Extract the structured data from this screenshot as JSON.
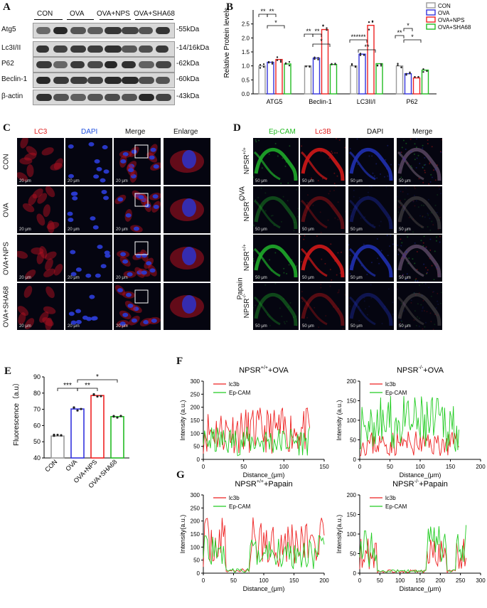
{
  "panels": {
    "A": "A",
    "B": "B",
    "C": "C",
    "D": "D",
    "E": "E",
    "F": "F",
    "G": "G"
  },
  "panelA": {
    "groups": [
      "CON",
      "OVA",
      "OVA+NPS",
      "OVA+SHA68"
    ],
    "rows": [
      {
        "label": "Atg5",
        "kda": "-55kDa"
      },
      {
        "label": "Lc3I/II",
        "kda": "-14/16kDa"
      },
      {
        "label": "P62",
        "kda": "-62kDa"
      },
      {
        "label": "Beclin-1",
        "kda": "-60kDa"
      },
      {
        "label": "β-actin",
        "kda": "-43kDa"
      }
    ]
  },
  "panelC": {
    "columns": [
      "LC3",
      "DAPI",
      "Merge",
      "Enlarge"
    ],
    "rows": [
      "CON",
      "OVA",
      "OVA+NPS",
      "OVA+SHA68"
    ],
    "scale": "20 μm"
  },
  "panelD": {
    "columns": [
      "Ep-CAM",
      "Lc3B",
      "DAPI",
      "Merge"
    ],
    "groups": [
      "OVA",
      "Papain"
    ],
    "genotype_wt": "NPSR",
    "genotype_wt_sup": "+/+",
    "genotype_ko": "NPSR",
    "genotype_ko_sup": "-/-",
    "scale": "50 μm"
  },
  "colors": {
    "CON": "#9a9a9a",
    "OVA": "#3333dd",
    "OVA_NPS": "#ee2222",
    "OVA_SHA68": "#22bb22",
    "lc3b": "#ee2222",
    "epcam": "#22cc22"
  },
  "chart_data": [
    {
      "id": "B",
      "type": "bar",
      "ylabel": "Relative Protein levels",
      "ylim": [
        0,
        3.0
      ],
      "yticks": [
        "0.0",
        "0.5",
        "1.0",
        "1.5",
        "2.0",
        "2.5"
      ],
      "categories": [
        "ATG5",
        "Beclin-1",
        "LC3II/I",
        "P62"
      ],
      "series": [
        {
          "name": "CON",
          "values": [
            1.0,
            1.0,
            1.0,
            1.0
          ]
        },
        {
          "name": "OVA",
          "values": [
            1.13,
            1.28,
            1.42,
            0.72
          ]
        },
        {
          "name": "OVA+NPS",
          "values": [
            1.23,
            2.3,
            2.45,
            0.57
          ]
        },
        {
          "name": "OVA+SHA68",
          "values": [
            1.07,
            1.05,
            1.08,
            0.85
          ]
        }
      ],
      "significance": [
        "**",
        "**",
        "*",
        "**",
        "**",
        "*",
        "******",
        "**",
        "**",
        "*",
        "*"
      ],
      "legend": "top-right"
    },
    {
      "id": "E",
      "type": "bar",
      "ylabel": "Fluorescence（a.u）",
      "ylim": [
        40,
        90
      ],
      "yticks": [
        "40",
        "50",
        "60",
        "70",
        "80",
        "90"
      ],
      "categories": [
        "CON",
        "OVA",
        "OVA+NPS",
        "OVA+SHA68"
      ],
      "values": [
        53.5,
        70.2,
        78.5,
        65.5
      ],
      "significance": [
        "***",
        "**",
        "*"
      ]
    },
    {
      "id": "F1",
      "type": "line",
      "title": "NPSR",
      "title_sup": "+/+",
      "title_rest": "+OVA",
      "xlabel": "Distance_(μm)",
      "ylabel": "Intensity (a.u.)",
      "xlim": [
        0,
        150
      ],
      "ylim": [
        0,
        300
      ],
      "xticks": [
        "0",
        "50",
        "100",
        "150"
      ],
      "yticks": [
        "0",
        "50",
        "100",
        "150",
        "200",
        "250",
        "300"
      ],
      "series": [
        {
          "name": "lc3b"
        },
        {
          "name": "Ep-CAM"
        }
      ]
    },
    {
      "id": "F2",
      "type": "line",
      "title": "NPSR",
      "title_sup": "-/-",
      "title_rest": "+OVA",
      "xlabel": "Distance_(μm)",
      "ylabel": "Intensity (a.u.)",
      "xlim": [
        0,
        200
      ],
      "ylim": [
        0,
        200
      ],
      "xticks": [
        "0",
        "50",
        "100",
        "150",
        "200"
      ],
      "yticks": [
        "0",
        "50",
        "100",
        "150",
        "200"
      ],
      "series": [
        {
          "name": "lc3b"
        },
        {
          "name": "Ep-CAM"
        }
      ]
    },
    {
      "id": "G1",
      "type": "line",
      "title": "NPSR",
      "title_sup": "+/+",
      "title_rest": "+Papain",
      "xlabel": "Distance_(μm)",
      "ylabel": "Intensity(a.u.)",
      "xlim": [
        0,
        200
      ],
      "ylim": [
        0,
        300
      ],
      "xticks": [
        "0",
        "50",
        "100",
        "150",
        "200"
      ],
      "yticks": [
        "0",
        "50",
        "100",
        "150",
        "200",
        "250",
        "300"
      ],
      "series": [
        {
          "name": "lc3b"
        },
        {
          "name": "Ep-CAM"
        }
      ]
    },
    {
      "id": "G2",
      "type": "line",
      "title": "NPSR",
      "title_sup": "-/-",
      "title_rest": "+Papain",
      "xlabel": "Distance_(μm)",
      "ylabel": "Intensity(a.u.)",
      "xlim": [
        0,
        300
      ],
      "ylim": [
        0,
        200
      ],
      "xticks": [
        "0",
        "50",
        "100",
        "150",
        "200",
        "250",
        "300"
      ],
      "yticks": [
        "0",
        "50",
        "100",
        "150",
        "200"
      ],
      "series": [
        {
          "name": "lc3b"
        },
        {
          "name": "Ep-CAM"
        }
      ]
    }
  ]
}
